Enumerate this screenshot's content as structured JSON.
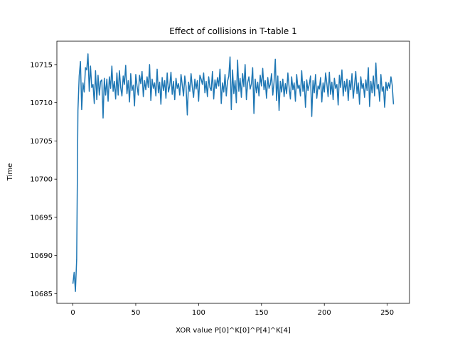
{
  "chart_data": {
    "type": "line",
    "title": "Effect of collisions in T-table 1",
    "xlabel": "XOR value P[0]^K[0]^P[4]^K[4]",
    "ylabel": "Time",
    "x": [
      0,
      1,
      2,
      3,
      4,
      5,
      6,
      7,
      8,
      9,
      10,
      11,
      12,
      13,
      14,
      15,
      16,
      17,
      18,
      19,
      20,
      21,
      22,
      23,
      24,
      25,
      26,
      27,
      28,
      29,
      30,
      31,
      32,
      33,
      34,
      35,
      36,
      37,
      38,
      39,
      40,
      41,
      42,
      43,
      44,
      45,
      46,
      47,
      48,
      49,
      50,
      51,
      52,
      53,
      54,
      55,
      56,
      57,
      58,
      59,
      60,
      61,
      62,
      63,
      64,
      65,
      66,
      67,
      68,
      69,
      70,
      71,
      72,
      73,
      74,
      75,
      76,
      77,
      78,
      79,
      80,
      81,
      82,
      83,
      84,
      85,
      86,
      87,
      88,
      89,
      90,
      91,
      92,
      93,
      94,
      95,
      96,
      97,
      98,
      99,
      100,
      101,
      102,
      103,
      104,
      105,
      106,
      107,
      108,
      109,
      110,
      111,
      112,
      113,
      114,
      115,
      116,
      117,
      118,
      119,
      120,
      121,
      122,
      123,
      124,
      125,
      126,
      127,
      128,
      129,
      130,
      131,
      132,
      133,
      134,
      135,
      136,
      137,
      138,
      139,
      140,
      141,
      142,
      143,
      144,
      145,
      146,
      147,
      148,
      149,
      150,
      151,
      152,
      153,
      154,
      155,
      156,
      157,
      158,
      159,
      160,
      161,
      162,
      163,
      164,
      165,
      166,
      167,
      168,
      169,
      170,
      171,
      172,
      173,
      174,
      175,
      176,
      177,
      178,
      179,
      180,
      181,
      182,
      183,
      184,
      185,
      186,
      187,
      188,
      189,
      190,
      191,
      192,
      193,
      194,
      195,
      196,
      197,
      198,
      199,
      200,
      201,
      202,
      203,
      204,
      205,
      206,
      207,
      208,
      209,
      210,
      211,
      212,
      213,
      214,
      215,
      216,
      217,
      218,
      219,
      220,
      221,
      222,
      223,
      224,
      225,
      226,
      227,
      228,
      229,
      230,
      231,
      232,
      233,
      234,
      235,
      236,
      237,
      238,
      239,
      240,
      241,
      242,
      243,
      244,
      245,
      246,
      247,
      248,
      249,
      250,
      251,
      252,
      253,
      254,
      255
    ],
    "series": [
      {
        "color": "#1f77b4",
        "values": [
          10686.3,
          10687.8,
          10685.3,
          10689.5,
          10709.0,
          10713.5,
          10715.4,
          10709.1,
          10712.6,
          10711.4,
          10714.6,
          10714.3,
          10716.4,
          10711.5,
          10714.8,
          10712.0,
          10712.4,
          10709.9,
          10714.2,
          10710.4,
          10713.6,
          10711.0,
          10712.8,
          10713.0,
          10708.0,
          10713.2,
          10711.0,
          10713.1,
          10710.2,
          10713.4,
          10711.9,
          10714.8,
          10711.5,
          10712.8,
          10710.5,
          10713.9,
          10711.0,
          10714.2,
          10712.0,
          10710.9,
          10713.5,
          10712.4,
          10714.9,
          10711.2,
          10712.9,
          10710.1,
          10713.8,
          10711.6,
          10712.3,
          10709.6,
          10713.7,
          10712.2,
          10711.0,
          10713.6,
          10712.5,
          10714.1,
          10710.8,
          10712.9,
          10711.7,
          10713.4,
          10712.0,
          10715.0,
          10710.3,
          10713.1,
          10711.9,
          10712.6,
          10710.9,
          10714.4,
          10711.3,
          10712.7,
          10709.8,
          10713.3,
          10711.6,
          10712.9,
          10710.6,
          10713.9,
          10711.4,
          10712.2,
          10714.0,
          10711.1,
          10712.8,
          10710.4,
          10713.2,
          10711.9,
          10712.5,
          10711.0,
          10713.7,
          10712.3,
          10710.9,
          10713.5,
          10712.1,
          10708.4,
          10712.7,
          10711.5,
          10713.8,
          10712.0,
          10710.7,
          10713.1,
          10711.8,
          10712.9,
          10710.2,
          10713.6,
          10713.1,
          10712.4,
          10713.9,
          10711.3,
          10712.8,
          10710.8,
          10713.4,
          10712.0,
          10711.6,
          10714.1,
          10710.5,
          10713.0,
          10711.9,
          10713.3,
          10712.2,
          10714.4,
          10709.9,
          10712.6,
          10711.4,
          10713.7,
          10710.9,
          10712.8,
          10713.5,
          10716.0,
          10709.1,
          10714.3,
          10711.2,
          10712.9,
          10710.0,
          10715.6,
          10711.5,
          10713.2,
          10710.7,
          10713.8,
          10712.1,
          10715.0,
          10710.4,
          10712.6,
          10713.4,
          10711.8,
          10712.5,
          10714.6,
          10708.6,
          10713.1,
          10711.3,
          10712.7,
          10710.9,
          10713.6,
          10712.2,
          10714.5,
          10711.7,
          10712.9,
          10710.6,
          10713.3,
          10711.9,
          10712.4,
          10713.8,
          10711.0,
          10712.7,
          10715.7,
          10710.3,
          10713.5,
          10709.0,
          10712.8,
          10711.4,
          10713.1,
          10710.8,
          10712.5,
          10711.2,
          10713.9,
          10712.0,
          10710.5,
          10713.4,
          10711.7,
          10712.6,
          10710.2,
          10713.7,
          10711.9,
          10712.3,
          10710.9,
          10714.2,
          10711.5,
          10712.8,
          10709.4,
          10713.0,
          10711.6,
          10712.4,
          10713.5,
          10708.2,
          10712.9,
          10711.3,
          10713.7,
          10710.6,
          10712.2,
          10711.8,
          10713.3,
          10710.1,
          10712.6,
          10711.4,
          10713.9,
          10712.5,
          10710.8,
          10714.0,
          10711.1,
          10712.7,
          10710.4,
          10713.2,
          10711.9,
          10712.4,
          10709.7,
          10713.6,
          10712.0,
          10714.3,
          10710.9,
          10712.8,
          10711.5,
          10713.1,
          10710.3,
          10712.9,
          10711.7,
          10713.8,
          10710.6,
          10712.3,
          10714.1,
          10711.2,
          10712.6,
          10709.8,
          10713.4,
          10711.9,
          10712.5,
          10710.7,
          10713.0,
          10711.6,
          10714.6,
          10709.5,
          10712.8,
          10711.3,
          10713.5,
          10710.9,
          10715.2,
          10711.8,
          10712.4,
          10710.2,
          10713.7,
          10711.5,
          10712.1,
          10709.4,
          10712.7,
          10711.6,
          10712.6,
          10711.9,
          10713.4,
          10712.3,
          10709.8
        ]
      }
    ],
    "xlim": [
      -12.75,
      267.75
    ],
    "ylim": [
      10683.74,
      10718.06
    ],
    "xticks": [
      0,
      50,
      100,
      150,
      200,
      250
    ],
    "yticks": [
      10685,
      10690,
      10695,
      10700,
      10705,
      10710,
      10715
    ]
  }
}
